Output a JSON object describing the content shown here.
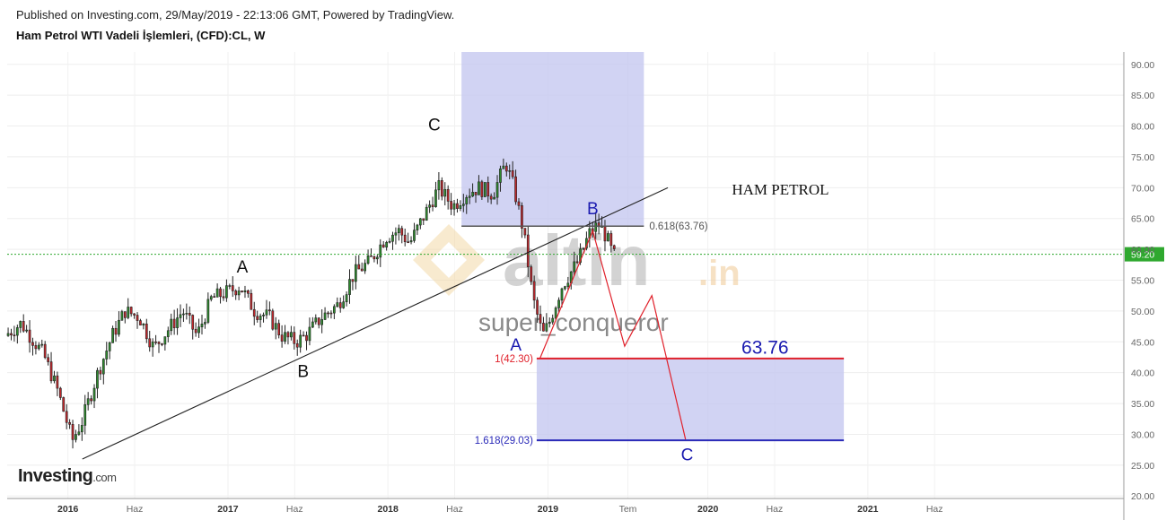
{
  "header": {
    "published": "Published on Investing.com, 29/May/2019 - 22:13:06 GMT, Powered by TradingView.",
    "instrument": "Ham Petrol WTI Vadeli İşlemleri, (CFD):CL, W"
  },
  "logo": {
    "brand": "Investing",
    "suffix": ".com"
  },
  "watermark": {
    "brand": "altin",
    "tld": ".in",
    "author": "super_conqueror"
  },
  "colors": {
    "up": "#2e8b2e",
    "down": "#c0282d",
    "box": "#c5c8f0",
    "trend": "#222222",
    "fib_red": "#e0202a",
    "fib_blue": "#2a2ab8",
    "fib_gray": "#555555",
    "price_line": "#2fa82f",
    "wave_path": "#e0202a",
    "wave_black": "#111111",
    "wave_blue": "#1a1ab0"
  },
  "chart_data": {
    "type": "candlestick",
    "x_axis": {
      "labels": [
        {
          "t": 2016.0,
          "text": "2016",
          "year": true
        },
        {
          "t": 2016.417,
          "text": "Haz",
          "year": false
        },
        {
          "t": 2017.0,
          "text": "2017",
          "year": true
        },
        {
          "t": 2017.417,
          "text": "Haz",
          "year": false
        },
        {
          "t": 2018.0,
          "text": "2018",
          "year": true
        },
        {
          "t": 2018.417,
          "text": "Haz",
          "year": false
        },
        {
          "t": 2019.0,
          "text": "2019",
          "year": true
        },
        {
          "t": 2019.5,
          "text": "Tem",
          "year": false
        },
        {
          "t": 2020.0,
          "text": "2020",
          "year": true
        },
        {
          "t": 2020.417,
          "text": "Haz",
          "year": false
        },
        {
          "t": 2021.0,
          "text": "2021",
          "year": true
        },
        {
          "t": 2021.417,
          "text": "Haz",
          "year": false
        }
      ],
      "range": [
        2015.62,
        2022.6
      ]
    },
    "y_axis": {
      "ticks": [
        "20.00",
        "25.00",
        "30.00",
        "35.00",
        "40.00",
        "45.00",
        "50.00",
        "55.00",
        "60.00",
        "65.00",
        "70.00",
        "75.00",
        "80.00",
        "85.00",
        "90.00"
      ],
      "range": [
        19.6,
        92.0
      ]
    },
    "last_price": {
      "value": 59.2,
      "label": "59.20"
    },
    "price_path": [
      [
        2015.62,
        46
      ],
      [
        2015.72,
        48
      ],
      [
        2015.86,
        43
      ],
      [
        2015.95,
        37
      ],
      [
        2016.04,
        29
      ],
      [
        2016.1,
        32
      ],
      [
        2016.2,
        40
      ],
      [
        2016.29,
        46
      ],
      [
        2016.37,
        50
      ],
      [
        2016.46,
        49
      ],
      [
        2016.55,
        44
      ],
      [
        2016.64,
        47
      ],
      [
        2016.73,
        50
      ],
      [
        2016.82,
        46
      ],
      [
        2016.91,
        52
      ],
      [
        2017.0,
        53
      ],
      [
        2017.09,
        54
      ],
      [
        2017.18,
        50
      ],
      [
        2017.27,
        49
      ],
      [
        2017.35,
        46
      ],
      [
        2017.44,
        45
      ],
      [
        2017.5,
        46
      ],
      [
        2017.6,
        49
      ],
      [
        2017.7,
        51
      ],
      [
        2017.8,
        56
      ],
      [
        2017.9,
        58
      ],
      [
        2018.0,
        62
      ],
      [
        2018.08,
        63
      ],
      [
        2018.15,
        61
      ],
      [
        2018.25,
        66
      ],
      [
        2018.33,
        70
      ],
      [
        2018.42,
        67
      ],
      [
        2018.5,
        69
      ],
      [
        2018.58,
        70
      ],
      [
        2018.67,
        69
      ],
      [
        2018.75,
        74
      ],
      [
        2018.8,
        70
      ],
      [
        2018.86,
        63
      ],
      [
        2018.92,
        52
      ],
      [
        2018.98,
        46
      ],
      [
        2019.02,
        48
      ],
      [
        2019.1,
        54
      ],
      [
        2019.2,
        58
      ],
      [
        2019.28,
        63
      ],
      [
        2019.33,
        64
      ],
      [
        2019.38,
        62
      ],
      [
        2019.42,
        59
      ]
    ],
    "trendline": {
      "from": [
        2016.09,
        26.0
      ],
      "to": [
        2019.75,
        70.0
      ]
    },
    "wave_labels": [
      {
        "t": 2017.09,
        "v": 56.2,
        "text": "A",
        "color": "black"
      },
      {
        "t": 2017.47,
        "v": 39.3,
        "text": "B",
        "color": "black"
      },
      {
        "t": 2018.29,
        "v": 79.3,
        "text": "C",
        "color": "black"
      },
      {
        "t": 2018.8,
        "v": 43.6,
        "text": "A",
        "color": "blue"
      },
      {
        "t": 2019.28,
        "v": 65.7,
        "text": "B",
        "color": "blue"
      },
      {
        "t": 2019.87,
        "v": 25.8,
        "text": "C",
        "color": "blue"
      }
    ],
    "projection_path": [
      [
        2018.95,
        42.3
      ],
      [
        2019.28,
        63.0
      ],
      [
        2019.48,
        44.3
      ],
      [
        2019.65,
        52.5
      ],
      [
        2019.86,
        29.2
      ]
    ],
    "boxes": [
      {
        "t1": 2018.46,
        "t2": 2019.6,
        "v1": 92.0,
        "v2": 63.76
      },
      {
        "t1": 2018.93,
        "t2": 2020.85,
        "v1": 42.3,
        "v2": 29.03
      }
    ],
    "fib_levels": [
      {
        "label": "0.618(63.76)",
        "value": 63.76,
        "t1": 2018.46,
        "t2": 2019.6,
        "color": "gray",
        "label_side": "right"
      },
      {
        "label": "1(42.30)",
        "value": 42.3,
        "t1": 2018.93,
        "t2": 2020.85,
        "color": "red",
        "label_side": "left"
      },
      {
        "label": "1.618(29.03)",
        "value": 29.03,
        "t1": 2018.93,
        "t2": 2020.85,
        "color": "blue",
        "label_side": "left"
      }
    ],
    "annotations": [
      {
        "t": 2020.15,
        "v": 68.9,
        "text": "HAM PETROL",
        "style": "serif"
      },
      {
        "t": 2020.21,
        "v": 43.1,
        "text": "63.76",
        "style": "blue-large"
      }
    ]
  }
}
